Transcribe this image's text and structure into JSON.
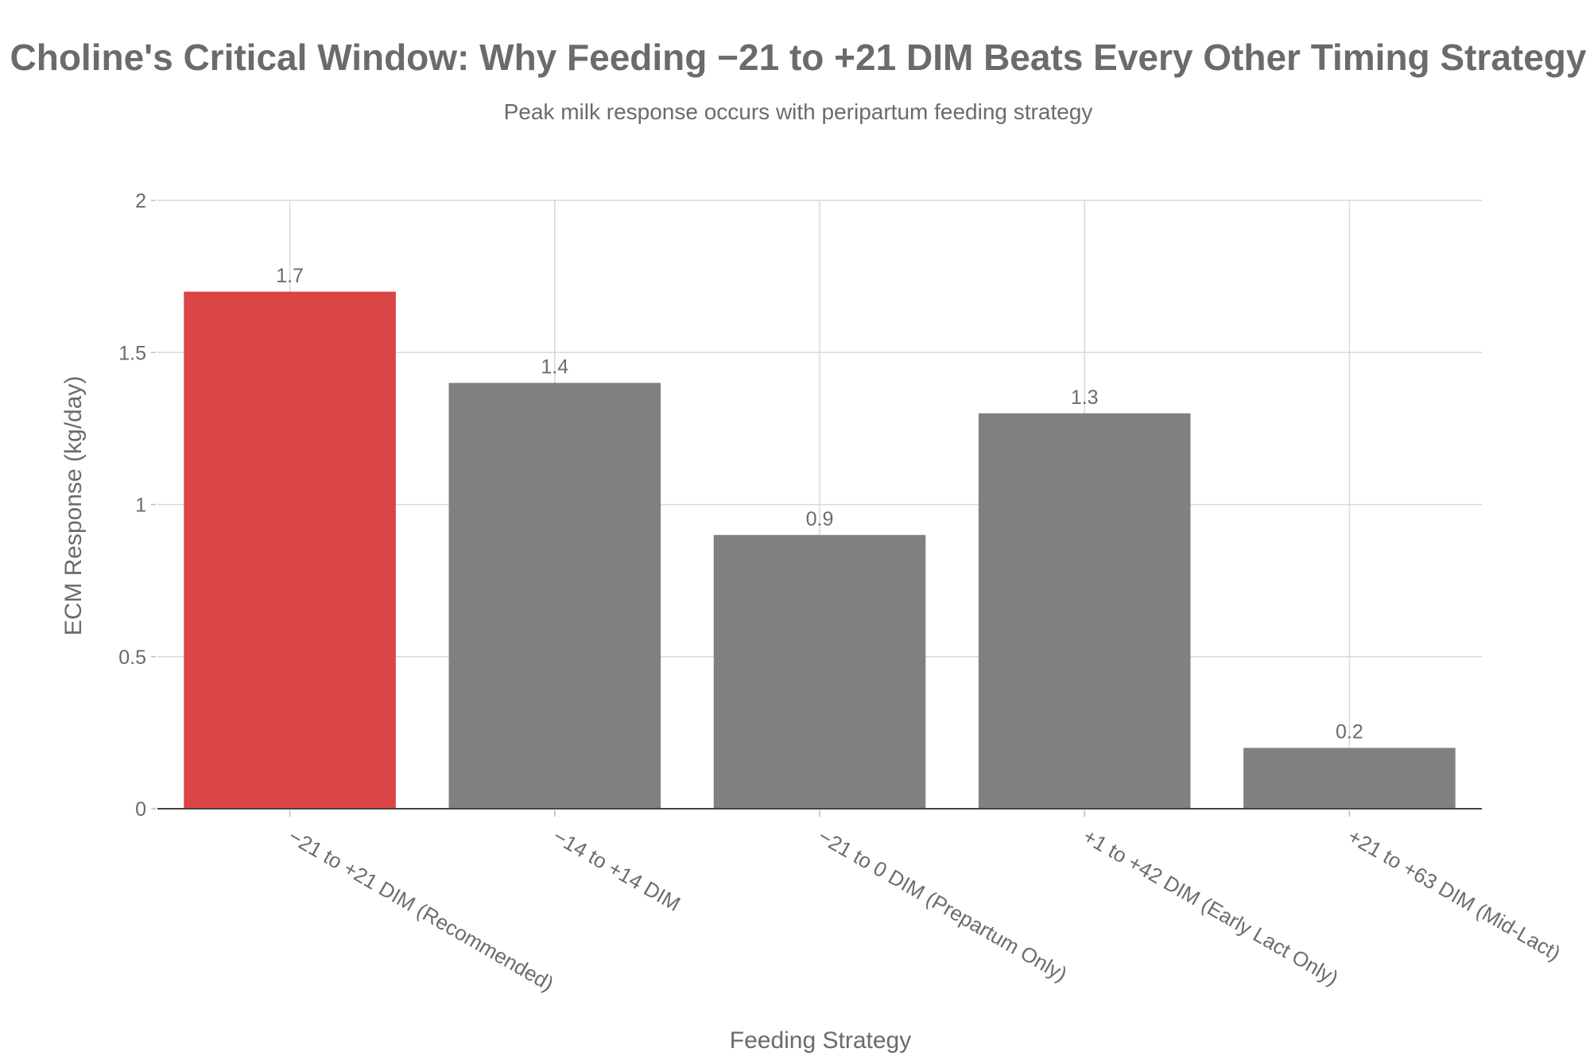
{
  "chart_data": {
    "type": "bar",
    "title": "Choline's Critical Window: Why Feeding −21 to +21 DIM Beats Every Other Timing Strategy",
    "subtitle": "Peak milk response occurs with peripartum feeding strategy",
    "xlabel": "Feeding Strategy",
    "ylabel": "ECM Response (kg/day)",
    "categories": [
      "−21 to +21 DIM (Recommended)",
      "−14 to +14 DIM",
      "−21 to 0 DIM (Prepartum Only)",
      "+1 to +42 DIM (Early Lact Only)",
      "+21 to +63 DIM (Mid-Lact)"
    ],
    "values": [
      1.7,
      1.4,
      0.9,
      1.3,
      0.2
    ],
    "data_labels": [
      "1.7",
      "1.4",
      "0.9",
      "1.3",
      "0.2"
    ],
    "ylim": [
      0,
      2
    ],
    "yticks": [
      0,
      0.5,
      1,
      1.5,
      2
    ],
    "ytick_labels": [
      "0",
      "0.5",
      "1",
      "1.5",
      "2"
    ],
    "grid": true,
    "legend": "none",
    "colors": {
      "highlight": "#db4545",
      "default": "#808080",
      "text": "#6b6b6b",
      "grid": "#d9d9d9",
      "axis": "#444444"
    },
    "highlight_index": 0
  }
}
